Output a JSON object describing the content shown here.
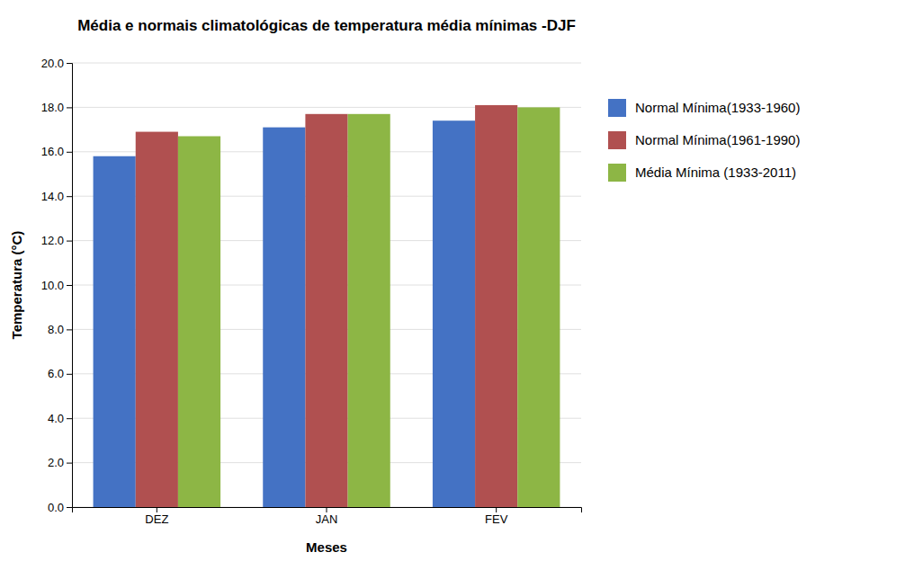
{
  "chart_data": {
    "type": "bar",
    "title": "Média e normais climatológicas de temperatura média mínimas -DJF",
    "xlabel": "Meses",
    "ylabel": "Temperatura (°C)",
    "categories": [
      "DEZ",
      "JAN",
      "FEV"
    ],
    "series": [
      {
        "name": "Normal Mínima(1933-1960)",
        "color": "#4472C4",
        "values": [
          15.8,
          17.1,
          17.4
        ]
      },
      {
        "name": "Normal Mínima(1961-1990)",
        "color": "#B05050",
        "values": [
          16.9,
          17.7,
          18.1
        ]
      },
      {
        "name": "Média Mínima (1933-2011)",
        "color": "#8DB645",
        "values": [
          16.7,
          17.7,
          18.0
        ]
      }
    ],
    "ylim": [
      0,
      20
    ],
    "yticks": [
      {
        "value": 0,
        "label": "0.0"
      },
      {
        "value": 2,
        "label": "2.0"
      },
      {
        "value": 4,
        "label": "4.0"
      },
      {
        "value": 6,
        "label": "6.0"
      },
      {
        "value": 8,
        "label": "8.0"
      },
      {
        "value": 10,
        "label": "10.0"
      },
      {
        "value": 12,
        "label": "12.0"
      },
      {
        "value": 14,
        "label": "14.0"
      },
      {
        "value": 16,
        "label": "16.0"
      },
      {
        "value": 18,
        "label": "18.0"
      },
      {
        "value": 20,
        "label": "20.0"
      }
    ],
    "grid": true,
    "legend": "right"
  }
}
